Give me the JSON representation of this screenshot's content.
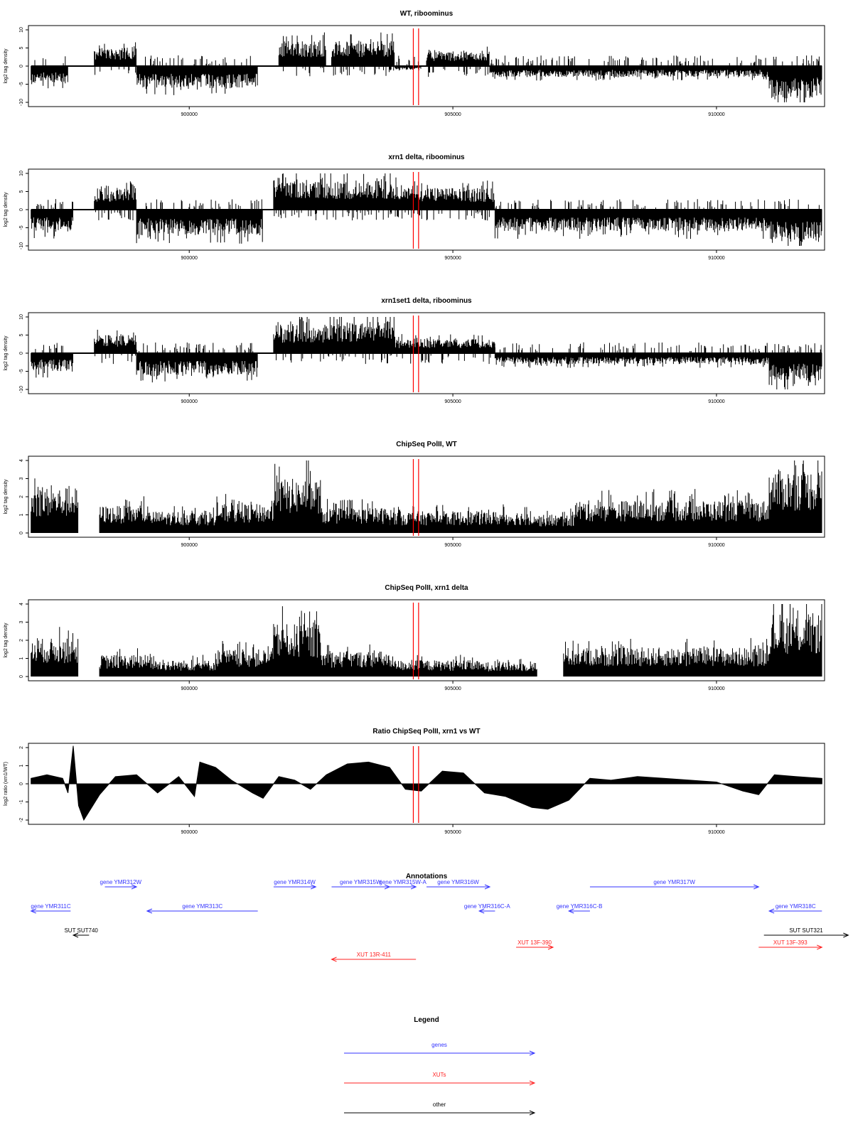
{
  "chart_data": [
    {
      "type": "bar",
      "title": "WT, riboominus",
      "xlabel": "",
      "ylabel": "log2 tag density",
      "xlim": [
        896950,
        912050
      ],
      "ylim": [
        -10,
        10
      ],
      "yticks": [
        10,
        5,
        0,
        -5,
        -10
      ],
      "xticks": [
        900000,
        905000,
        910000
      ],
      "style": "two-sided-bars",
      "series_description": "stranded tag density (+ up, - down)",
      "segments": [
        {
          "from": 897000,
          "to": 897700,
          "value": -5
        },
        {
          "from": 898200,
          "to": 899000,
          "value": 5
        },
        {
          "from": 899000,
          "to": 901300,
          "value": -6
        },
        {
          "from": 901700,
          "to": 902600,
          "value": 7
        },
        {
          "from": 902700,
          "to": 903900,
          "value": 7
        },
        {
          "from": 903900,
          "to": 904400,
          "value": -1
        },
        {
          "from": 904500,
          "to": 905700,
          "value": 4
        },
        {
          "from": 905700,
          "to": 911000,
          "value": -3
        },
        {
          "from": 911000,
          "to": 912000,
          "value": -9
        }
      ],
      "markers": [
        904250,
        904350
      ]
    },
    {
      "type": "bar",
      "title": "xrn1 delta, riboominus",
      "xlabel": "",
      "ylabel": "log2 tag density",
      "xlim": [
        896950,
        912050
      ],
      "ylim": [
        -10,
        10
      ],
      "yticks": [
        10,
        5,
        0,
        -5,
        -10
      ],
      "xticks": [
        900000,
        905000,
        910000
      ],
      "style": "two-sided-bars",
      "segments": [
        {
          "from": 897000,
          "to": 897800,
          "value": -6
        },
        {
          "from": 898200,
          "to": 899000,
          "value": 6
        },
        {
          "from": 899000,
          "to": 901400,
          "value": -7
        },
        {
          "from": 901600,
          "to": 902600,
          "value": 9
        },
        {
          "from": 902600,
          "to": 904000,
          "value": 8
        },
        {
          "from": 904000,
          "to": 905800,
          "value": 6
        },
        {
          "from": 905800,
          "to": 911000,
          "value": -6
        },
        {
          "from": 911000,
          "to": 912000,
          "value": -9
        }
      ],
      "markers": [
        904250,
        904350
      ]
    },
    {
      "type": "bar",
      "title": "xrn1set1 delta, riboominus",
      "xlabel": "",
      "ylabel": "log2 tag density",
      "xlim": [
        896950,
        912050
      ],
      "ylim": [
        -10,
        10
      ],
      "yticks": [
        10,
        5,
        0,
        -5,
        -10
      ],
      "xticks": [
        900000,
        905000,
        910000
      ],
      "style": "two-sided-bars",
      "segments": [
        {
          "from": 897000,
          "to": 897800,
          "value": -5
        },
        {
          "from": 898200,
          "to": 899000,
          "value": 5
        },
        {
          "from": 899000,
          "to": 901300,
          "value": -6
        },
        {
          "from": 901600,
          "to": 902600,
          "value": 8
        },
        {
          "from": 902600,
          "to": 903900,
          "value": 9
        },
        {
          "from": 903900,
          "to": 905800,
          "value": 4
        },
        {
          "from": 905800,
          "to": 911000,
          "value": -3
        },
        {
          "from": 911000,
          "to": 912000,
          "value": -8
        }
      ],
      "markers": [
        904250,
        904350
      ]
    },
    {
      "type": "bar",
      "title": "ChipSeq PolII, WT",
      "xlabel": "",
      "ylabel": "log2 tag density",
      "xlim": [
        896950,
        912050
      ],
      "ylim": [
        0,
        4
      ],
      "yticks": [
        4,
        3,
        2,
        1,
        0
      ],
      "xticks": [
        900000,
        905000,
        910000
      ],
      "style": "one-sided-bars",
      "segments": [
        {
          "from": 897000,
          "to": 897900,
          "value": 2.5
        },
        {
          "from": 898300,
          "to": 899200,
          "value": 1.5
        },
        {
          "from": 899200,
          "to": 900500,
          "value": 1.2
        },
        {
          "from": 900500,
          "to": 901600,
          "value": 1.6
        },
        {
          "from": 901600,
          "to": 902500,
          "value": 3.0
        },
        {
          "from": 902500,
          "to": 903800,
          "value": 1.4
        },
        {
          "from": 903800,
          "to": 905500,
          "value": 1.2
        },
        {
          "from": 905500,
          "to": 906600,
          "value": 1.2
        },
        {
          "from": 906600,
          "to": 907300,
          "value": 1.0
        },
        {
          "from": 907300,
          "to": 911000,
          "value": 1.8
        },
        {
          "from": 911000,
          "to": 912000,
          "value": 3.5
        }
      ],
      "markers": [
        904250,
        904350
      ]
    },
    {
      "type": "bar",
      "title": "ChipSeq PolII, xrn1 delta",
      "xlabel": "",
      "ylabel": "log2 tag density",
      "xlim": [
        896950,
        912050
      ],
      "ylim": [
        0,
        4
      ],
      "yticks": [
        4,
        3,
        2,
        1,
        0
      ],
      "xticks": [
        900000,
        905000,
        910000
      ],
      "style": "one-sided-bars",
      "segments": [
        {
          "from": 897000,
          "to": 897900,
          "value": 2.1
        },
        {
          "from": 898300,
          "to": 899300,
          "value": 1.2
        },
        {
          "from": 899300,
          "to": 900500,
          "value": 0.9
        },
        {
          "from": 900500,
          "to": 901600,
          "value": 1.5
        },
        {
          "from": 901600,
          "to": 902500,
          "value": 2.9
        },
        {
          "from": 902500,
          "to": 903800,
          "value": 1.4
        },
        {
          "from": 903800,
          "to": 905500,
          "value": 0.9
        },
        {
          "from": 905500,
          "to": 906600,
          "value": 0.8
        },
        {
          "from": 907100,
          "to": 911000,
          "value": 1.6
        },
        {
          "from": 911000,
          "to": 912000,
          "value": 3.5
        }
      ],
      "markers": [
        904250,
        904350
      ]
    },
    {
      "type": "area",
      "title": "Ratio ChipSeq PolII, xrn1 vs WT",
      "xlabel": "",
      "ylabel": "log2 ratio (xrn1/WT)",
      "xlim": [
        896950,
        912050
      ],
      "ylim": [
        -2,
        2
      ],
      "yticks": [
        2,
        1,
        0,
        -1,
        -2
      ],
      "xticks": [
        900000,
        905000,
        910000
      ],
      "style": "filled-area",
      "x": [
        897000,
        897300,
        897600,
        897700,
        897800,
        897900,
        898000,
        898300,
        898600,
        899000,
        899400,
        899800,
        900100,
        900200,
        900500,
        900800,
        901200,
        901400,
        901700,
        902000,
        902300,
        902600,
        903000,
        903400,
        903800,
        904100,
        904400,
        904800,
        905200,
        905600,
        906000,
        906500,
        906800,
        907200,
        907600,
        908000,
        908500,
        909000,
        909500,
        910000,
        910500,
        910800,
        911100,
        911500,
        912000
      ],
      "y": [
        0.3,
        0.5,
        0.3,
        -0.5,
        2.1,
        -1.2,
        -2.0,
        -0.6,
        0.4,
        0.5,
        -0.5,
        0.4,
        -0.7,
        1.2,
        0.9,
        0.2,
        -0.5,
        -0.8,
        0.4,
        0.2,
        -0.3,
        0.5,
        1.1,
        1.2,
        0.9,
        -0.3,
        -0.4,
        0.7,
        0.6,
        -0.5,
        -0.7,
        -1.3,
        -1.4,
        -0.9,
        0.3,
        0.2,
        0.4,
        0.3,
        0.2,
        0.1,
        -0.4,
        -0.6,
        0.5,
        0.4,
        0.3
      ],
      "markers": [
        904250,
        904350
      ]
    }
  ],
  "annotations": {
    "title": "Annotations",
    "xlim": [
      896950,
      912050
    ],
    "features": [
      {
        "label": "gene YMR311C",
        "kind": "gene",
        "strand": "-",
        "start": 897000,
        "end": 897750,
        "row": 0
      },
      {
        "label": "gene YMR312W",
        "kind": "gene",
        "strand": "+",
        "start": 898400,
        "end": 899000,
        "row": -1
      },
      {
        "label": "gene YMR313C",
        "kind": "gene",
        "strand": "-",
        "start": 899200,
        "end": 901300,
        "row": 0
      },
      {
        "label": "gene YMR314W",
        "kind": "gene",
        "strand": "+",
        "start": 901600,
        "end": 902400,
        "row": -1
      },
      {
        "label": "gene YMR315W",
        "kind": "gene",
        "strand": "+",
        "start": 902700,
        "end": 903800,
        "row": -1
      },
      {
        "label": "gene YMR315W-A",
        "kind": "gene",
        "strand": "+",
        "start": 903800,
        "end": 904300,
        "row": -1
      },
      {
        "label": "gene YMR316W",
        "kind": "gene",
        "strand": "+",
        "start": 904500,
        "end": 905700,
        "row": -1
      },
      {
        "label": "gene YMR316C-A",
        "kind": "gene",
        "strand": "-",
        "start": 905500,
        "end": 905800,
        "row": 0
      },
      {
        "label": "gene YMR316C-B",
        "kind": "gene",
        "strand": "-",
        "start": 907200,
        "end": 907600,
        "row": 0
      },
      {
        "label": "gene YMR317W",
        "kind": "gene",
        "strand": "+",
        "start": 907600,
        "end": 910800,
        "row": -1
      },
      {
        "label": "gene YMR318C",
        "kind": "gene",
        "strand": "-",
        "start": 911000,
        "end": 912000,
        "row": 0
      },
      {
        "label": "SUT SUT740",
        "kind": "other",
        "strand": "-",
        "start": 897800,
        "end": 898100,
        "row": 1
      },
      {
        "label": "SUT SUT321",
        "kind": "other",
        "strand": "+",
        "start": 910900,
        "end": 912500,
        "row": 1
      },
      {
        "label": "XUT 13R-411",
        "kind": "xut",
        "strand": "-",
        "start": 902700,
        "end": 904300,
        "row": 2
      },
      {
        "label": "XUT 13F-390",
        "kind": "xut",
        "strand": "+",
        "start": 906200,
        "end": 906900,
        "row": 1.5
      },
      {
        "label": "XUT 13F-393",
        "kind": "xut",
        "strand": "+",
        "start": 910800,
        "end": 912000,
        "row": 1.5
      }
    ]
  },
  "legend": {
    "title": "Legend",
    "entries": [
      {
        "label": "genes",
        "color": "#3333ff"
      },
      {
        "label": "XUTs",
        "color": "#ff2222"
      },
      {
        "label": "other",
        "color": "#000000"
      }
    ]
  },
  "colors": {
    "gene": "#3333ff",
    "xut": "#ff2222",
    "other": "#000000",
    "marker": "#ff0000",
    "ink": "#000000"
  }
}
